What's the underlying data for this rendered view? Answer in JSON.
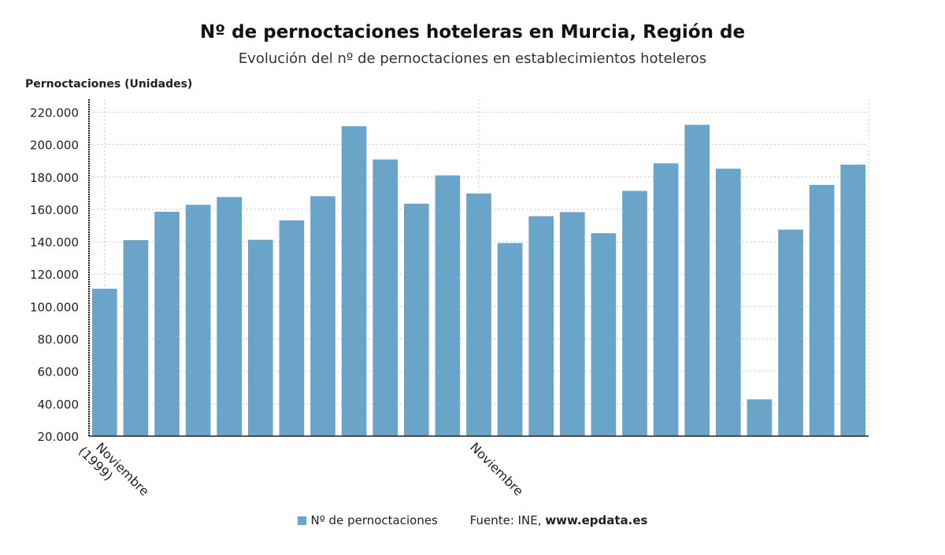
{
  "chart_data": {
    "type": "bar",
    "title": "Nº de pernoctaciones hoteleras en Murcia, Región de",
    "subtitle": "Evolución del nº de pernoctaciones en establecimientos hoteleros",
    "ylabel": "Pernoctaciones (Unidades)",
    "xlabel": "",
    "ylim": [
      20000,
      228000
    ],
    "y_ticks": [
      20000,
      40000,
      60000,
      80000,
      100000,
      120000,
      140000,
      160000,
      180000,
      200000,
      220000
    ],
    "y_tick_labels": [
      "20.000",
      "40.000",
      "60.000",
      "80.000",
      "100.000",
      "120.000",
      "140.000",
      "160.000",
      "180.000",
      "200.000",
      "220.000"
    ],
    "x_tick_labels": [
      {
        "index": 0,
        "lines": [
          "Noviembre",
          "(1999)"
        ]
      },
      {
        "index": 12,
        "lines": [
          "Noviembre"
        ]
      }
    ],
    "grid": true,
    "legend_position": "bottom",
    "color": "#6aa5c9",
    "series": [
      {
        "name": "Nº de pernoctaciones",
        "values": [
          111000,
          141000,
          158500,
          162800,
          167600,
          141200,
          153200,
          168100,
          211300,
          190800,
          163500,
          181000,
          169800,
          139200,
          155800,
          158300,
          145300,
          171400,
          188400,
          212200,
          185100,
          42700,
          147500,
          175100,
          187600
        ]
      }
    ]
  },
  "legend": {
    "series_label": "Nº de pernoctaciones",
    "source_prefix": "Fuente: INE,",
    "source_site": "www.epdata.es"
  }
}
